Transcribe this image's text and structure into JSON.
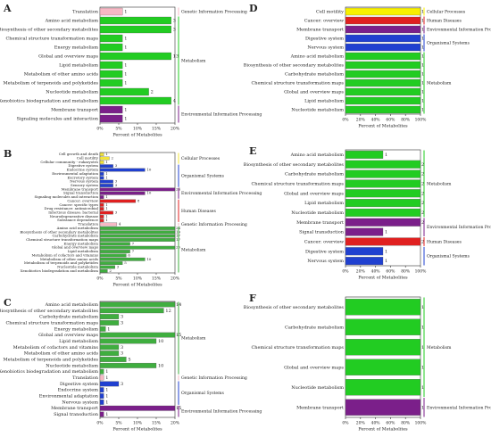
{
  "chart_data": [
    {
      "type": "bar",
      "panel": "A",
      "xlabel": "Percent of Metabolites",
      "xlim": [
        0,
        20
      ],
      "xticks": [
        {
          "value": 0,
          "label": "0%"
        },
        {
          "value": 5,
          "label": "5%"
        },
        {
          "value": 10,
          "label": "10%"
        },
        {
          "value": 15,
          "label": "15%"
        },
        {
          "value": 20,
          "label": "20%"
        }
      ],
      "groups": [
        {
          "name": "Genetic Information Processing",
          "color": "#f6b8c4",
          "categories": [
            "Translation"
          ],
          "values": [
            6
          ],
          "counts": [
            1
          ]
        },
        {
          "name": "Metabolism",
          "color": "#22cc22",
          "categories": [
            "Amino acid metabolism",
            "Biosynthesis of other secondary metabolites",
            "Chemical structure transformation maps",
            "Energy metabolism",
            "Global and overview maps",
            "Lipid metabolism",
            "Metabolism of other amino acids",
            "Metabolism of terpenoids and polyketides",
            "Nucleotide metabolism",
            "Xenobiotics biodegradation and metabolism"
          ],
          "values": [
            19,
            19,
            6,
            6,
            19,
            6,
            6,
            6,
            13,
            19
          ],
          "counts": [
            3,
            3,
            1,
            1,
            13,
            1,
            1,
            1,
            2,
            4
          ]
        },
        {
          "name": "Environmental Information Processing",
          "color": "#7b1f8a",
          "categories": [
            "Membrane transport",
            "Signaling molecules and interaction"
          ],
          "values": [
            6,
            6
          ],
          "counts": [
            1,
            1
          ]
        }
      ]
    },
    {
      "type": "bar",
      "panel": "B",
      "xlabel": "Percent of Metabolites",
      "xlim": [
        0,
        20
      ],
      "xticks": [
        {
          "value": 0,
          "label": "0%"
        },
        {
          "value": 5,
          "label": "5%"
        },
        {
          "value": 10,
          "label": "10%"
        },
        {
          "value": 15,
          "label": "15%"
        },
        {
          "value": 20,
          "label": "20%"
        }
      ],
      "groups": [
        {
          "name": "Cellular Processes",
          "color": "#f2e43a",
          "categories": [
            "Cell growth and death",
            "Cell motility",
            "Cellular community - eukaryotes"
          ],
          "values": [
            1,
            2.5,
            1
          ],
          "counts": [
            1,
            2,
            1
          ]
        },
        {
          "name": "Organismal Systems",
          "color": "#2040d0",
          "categories": [
            "Digestive system",
            "Endocrine system",
            "Environmental adaptation",
            "Excretory system",
            "Nervous system",
            "Sensory system"
          ],
          "values": [
            3.5,
            12,
            1,
            1,
            3.5,
            3.5
          ],
          "counts": [
            3,
            10,
            1,
            1,
            3,
            3
          ]
        },
        {
          "name": "Environmental Information Processing",
          "color": "#7b1f8a",
          "categories": [
            "Membrane transport",
            "Signal transduction",
            "Signaling molecules and interaction"
          ],
          "values": [
            20,
            12,
            1
          ],
          "counts": [
            24,
            10,
            1
          ]
        },
        {
          "name": "Human Diseases",
          "color": "#e02020",
          "categories": [
            "Cancer: overview",
            "Cancer: specific types",
            "Drug resistance: antimicrobial",
            "Infectious disease: bacterial",
            "Neurodegenerative disease",
            "Substance dependence"
          ],
          "values": [
            9.5,
            1,
            1,
            3.5,
            1,
            1
          ],
          "counts": [
            8,
            1,
            1,
            3,
            1,
            1
          ]
        },
        {
          "name": "Genetic Information Processing",
          "color": "#f6b8c4",
          "categories": [
            "Translation"
          ],
          "values": [
            4.5
          ],
          "counts": [
            4
          ]
        },
        {
          "name": "Metabolism",
          "color": "#3fae3f",
          "categories": [
            "Amino acid metabolism",
            "Biosynthesis of other secondary metabolites",
            "Carbohydrate metabolism",
            "Chemical structure transformation maps",
            "Energy metabolism",
            "Global and overview maps",
            "Lipid metabolism",
            "Metabolism of cofactors and vitamins",
            "Metabolism of other amino acids",
            "Metabolism of terpenoids and polyketides",
            "Nucleotide metabolism",
            "Xenobiotics biodegradation and metabolism"
          ],
          "values": [
            20,
            20,
            20,
            20,
            8,
            20,
            8,
            7,
            12,
            6,
            4,
            2
          ],
          "counts": [
            24,
            19,
            17,
            17,
            7,
            25,
            7,
            6,
            10,
            5,
            3,
            2
          ]
        }
      ]
    },
    {
      "type": "bar",
      "panel": "C",
      "xlabel": "Percent of Metabolites",
      "xlim": [
        0,
        20
      ],
      "xticks": [
        {
          "value": 0,
          "label": "0%"
        },
        {
          "value": 5,
          "label": "5%"
        },
        {
          "value": 10,
          "label": "10%"
        },
        {
          "value": 15,
          "label": "15%"
        },
        {
          "value": 20,
          "label": "20%"
        }
      ],
      "groups": [
        {
          "name": "Metabolism",
          "color": "#3fae3f",
          "categories": [
            "Amino acid metabolism",
            "Biosynthesis of other secondary metabolites",
            "Carbohydrate metabolism",
            "Chemical structure transformation maps",
            "Energy metabolism",
            "Global and overview maps",
            "Lipid metabolism",
            "Metabolism of cofactors and vitamins",
            "Metabolism of other amino acids",
            "Metabolism of terpenoids and polyketides",
            "Nucleotide metabolism",
            "Xenobiotics biodegradation and metabolism"
          ],
          "values": [
            20,
            17,
            5,
            5,
            1.5,
            20,
            15,
            5,
            5,
            7,
            15,
            1
          ],
          "counts": [
            14,
            12,
            3,
            3,
            1,
            15,
            10,
            3,
            3,
            5,
            10,
            1
          ]
        },
        {
          "name": "Genetic Information Processing",
          "color": "#f6b8c4",
          "categories": [
            "Translation"
          ],
          "values": [
            1
          ],
          "counts": [
            1
          ]
        },
        {
          "name": "Organismal Systems",
          "color": "#2040d0",
          "categories": [
            "Digestive system",
            "Endocrine system",
            "Environmental adaptation",
            "Nervous system"
          ],
          "values": [
            5,
            1,
            1,
            1
          ],
          "counts": [
            3,
            1,
            1,
            1
          ]
        },
        {
          "name": "Environmental Information Processing",
          "color": "#7b1f8a",
          "categories": [
            "Membrane transport",
            "Signal transduction"
          ],
          "values": [
            20,
            1
          ],
          "counts": [
            15,
            1
          ]
        }
      ]
    },
    {
      "type": "bar",
      "panel": "D",
      "xlabel": "Percent of Metabolites",
      "xlim": [
        0,
        100
      ],
      "xticks": [
        {
          "value": 0,
          "label": "0%"
        },
        {
          "value": 20,
          "label": "20%"
        },
        {
          "value": 40,
          "label": "40%"
        },
        {
          "value": 60,
          "label": "60%"
        },
        {
          "value": 80,
          "label": "80%"
        },
        {
          "value": 100,
          "label": "100%"
        }
      ],
      "groups": [
        {
          "name": "Cellular Processes",
          "color": "#f8f000",
          "categories": [
            "Cell motility"
          ],
          "values": [
            100
          ],
          "counts": [
            1
          ]
        },
        {
          "name": "Human Diseases",
          "color": "#e02020",
          "categories": [
            "Cancer: overview"
          ],
          "values": [
            100
          ],
          "counts": [
            1
          ]
        },
        {
          "name": "Environmental Information Processing",
          "color": "#7b1f8a",
          "categories": [
            "Membrane transport"
          ],
          "values": [
            100
          ],
          "counts": [
            1
          ]
        },
        {
          "name": "Organismal Systems",
          "color": "#2040d0",
          "categories": [
            "Digestive system",
            "Nervous system"
          ],
          "values": [
            100,
            100
          ],
          "counts": [
            1,
            1
          ]
        },
        {
          "name": "Metabolism",
          "color": "#22cc22",
          "categories": [
            "Amino acid metabolism",
            "Biosynthesis of other secondary metabolites",
            "Carbohydrate metabolism",
            "Chemical structure transformation maps",
            "Global and overview maps",
            "Lipid metabolism",
            "Nucleotide metabolism"
          ],
          "values": [
            100,
            100,
            100,
            100,
            100,
            100,
            100
          ],
          "counts": [
            1,
            1,
            1,
            1,
            1,
            1,
            1
          ]
        }
      ]
    },
    {
      "type": "bar",
      "panel": "E",
      "xlabel": "Percent of Metabolites",
      "xlim": [
        0,
        100
      ],
      "xticks": [
        {
          "value": 0,
          "label": "0%"
        },
        {
          "value": 20,
          "label": "20%"
        },
        {
          "value": 40,
          "label": "40%"
        },
        {
          "value": 60,
          "label": "60%"
        },
        {
          "value": 80,
          "label": "80%"
        },
        {
          "value": 100,
          "label": "100%"
        }
      ],
      "groups": [
        {
          "name": "Metabolism",
          "color": "#22cc22",
          "categories": [
            "Amino acid metabolism",
            "Biosynthesis of other secondary metabolites",
            "Carbohydrate metabolism",
            "Chemical structure transformation maps",
            "Global and overview maps",
            "Lipid metabolism",
            "Nucleotide metabolism"
          ],
          "values": [
            50,
            100,
            100,
            100,
            100,
            100,
            100
          ],
          "counts": [
            1,
            2,
            2,
            2,
            2,
            2,
            2
          ]
        },
        {
          "name": "Environmental Information Processing",
          "color": "#7b1f8a",
          "categories": [
            "Membrane transport",
            "Signal transduction"
          ],
          "values": [
            100,
            50
          ],
          "counts": [
            2,
            1
          ]
        },
        {
          "name": "Human Diseases",
          "color": "#e02020",
          "categories": [
            "Cancer: overview"
          ],
          "values": [
            100
          ],
          "counts": [
            2
          ]
        },
        {
          "name": "Organismal Systems",
          "color": "#2040d0",
          "categories": [
            "Digestive system",
            "Nervous system"
          ],
          "values": [
            50,
            50
          ],
          "counts": [
            1,
            1
          ]
        }
      ]
    },
    {
      "type": "bar",
      "panel": "F",
      "xlabel": "Percent of Metabolites",
      "xlim": [
        0,
        100
      ],
      "xticks": [
        {
          "value": 0,
          "label": "0%"
        },
        {
          "value": 20,
          "label": "20%"
        },
        {
          "value": 40,
          "label": "40%"
        },
        {
          "value": 60,
          "label": "60%"
        },
        {
          "value": 80,
          "label": "80%"
        },
        {
          "value": 100,
          "label": "100%"
        }
      ],
      "groups": [
        {
          "name": "Metabolism",
          "color": "#22cc22",
          "categories": [
            "Biosynthesis of other secondary metabolites",
            "Carbohydrate metabolism",
            "Chemical structure transformation maps",
            "Global and overview maps",
            "Nucleotide metabolism"
          ],
          "values": [
            100,
            100,
            100,
            100,
            100
          ],
          "counts": [
            1,
            1,
            1,
            1,
            1
          ]
        },
        {
          "name": "Environmental Information Processing",
          "color": "#7b1f8a",
          "categories": [
            "Membrane transport"
          ],
          "values": [
            100
          ],
          "counts": [
            1
          ]
        }
      ]
    }
  ]
}
